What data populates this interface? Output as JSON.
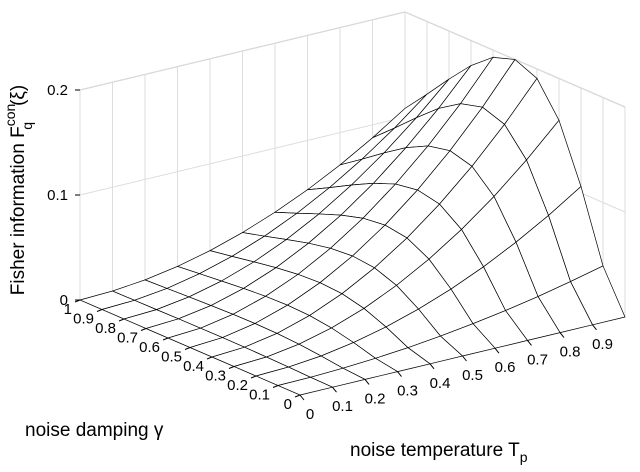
{
  "chart_data": {
    "type": "surface",
    "zlabel": {
      "text": "Fisher information F",
      "sub": "q",
      "sup": "con",
      "tail": "(ξ)"
    },
    "xlabel": {
      "text": "noise temperature T",
      "sub": "p"
    },
    "ylabel": "noise damping γ",
    "x": [
      0,
      0.1,
      0.2,
      0.3,
      0.4,
      0.5,
      0.6,
      0.7,
      0.8,
      0.9,
      1
    ],
    "y": [
      0,
      0.1,
      0.2,
      0.3,
      0.4,
      0.5,
      0.6,
      0.7,
      0.8,
      0.9,
      1
    ],
    "z": [
      [
        0,
        0,
        0,
        0,
        0,
        0,
        0,
        0,
        0,
        0,
        0
      ],
      [
        0,
        0.0004,
        0.0016,
        0.0036,
        0.0063,
        0.0099,
        0.0143,
        0.0194,
        0.0253,
        0.0321,
        0.0396
      ],
      [
        0,
        0.0011,
        0.0042,
        0.0096,
        0.017,
        0.0266,
        0.0382,
        0.052,
        0.068,
        0.086,
        0.1062
      ],
      [
        0,
        0.0016,
        0.0064,
        0.0144,
        0.0256,
        0.0401,
        0.0577,
        0.0785,
        0.1025,
        0.1298,
        0.1602
      ],
      [
        0,
        0.0019,
        0.0076,
        0.0172,
        0.0306,
        0.0478,
        0.0688,
        0.0936,
        0.1222,
        0.1547,
        0.191
      ],
      [
        0,
        0.002,
        0.008,
        0.018,
        0.032,
        0.05,
        0.072,
        0.098,
        0.128,
        0.162,
        0.2
      ],
      [
        0,
        0.0019,
        0.0077,
        0.0174,
        0.0309,
        0.0483,
        0.0695,
        0.0946,
        0.1235,
        0.1563,
        0.193
      ],
      [
        0,
        0.0018,
        0.007,
        0.0159,
        0.0282,
        0.0441,
        0.0634,
        0.0863,
        0.1128,
        0.1427,
        0.1762
      ],
      [
        0,
        0.0015,
        0.0062,
        0.0139,
        0.0247,
        0.0386,
        0.0555,
        0.0756,
        0.0987,
        0.1249,
        0.1542
      ],
      [
        0,
        0.0013,
        0.0052,
        0.0118,
        0.0209,
        0.0327,
        0.0471,
        0.0641,
        0.0837,
        0.1059,
        0.1308
      ],
      [
        0,
        0.0011,
        0.0043,
        0.0097,
        0.0173,
        0.0271,
        0.039,
        0.053,
        0.0692,
        0.0876,
        0.1082
      ]
    ],
    "xlim": [
      0,
      1
    ],
    "ylim": [
      0,
      1
    ],
    "zlim": [
      0,
      0.2
    ],
    "xticks": [
      0,
      0.1,
      0.2,
      0.3,
      0.4,
      0.5,
      0.6,
      0.7,
      0.8,
      0.9
    ],
    "yticks": [
      0,
      0.1,
      0.2,
      0.3,
      0.4,
      0.5,
      0.6,
      0.7,
      0.8,
      0.9,
      1
    ],
    "zticks": [
      0,
      0.1,
      0.2
    ],
    "grid": true,
    "color": "#ffffff",
    "edgecolor": "#000000"
  }
}
